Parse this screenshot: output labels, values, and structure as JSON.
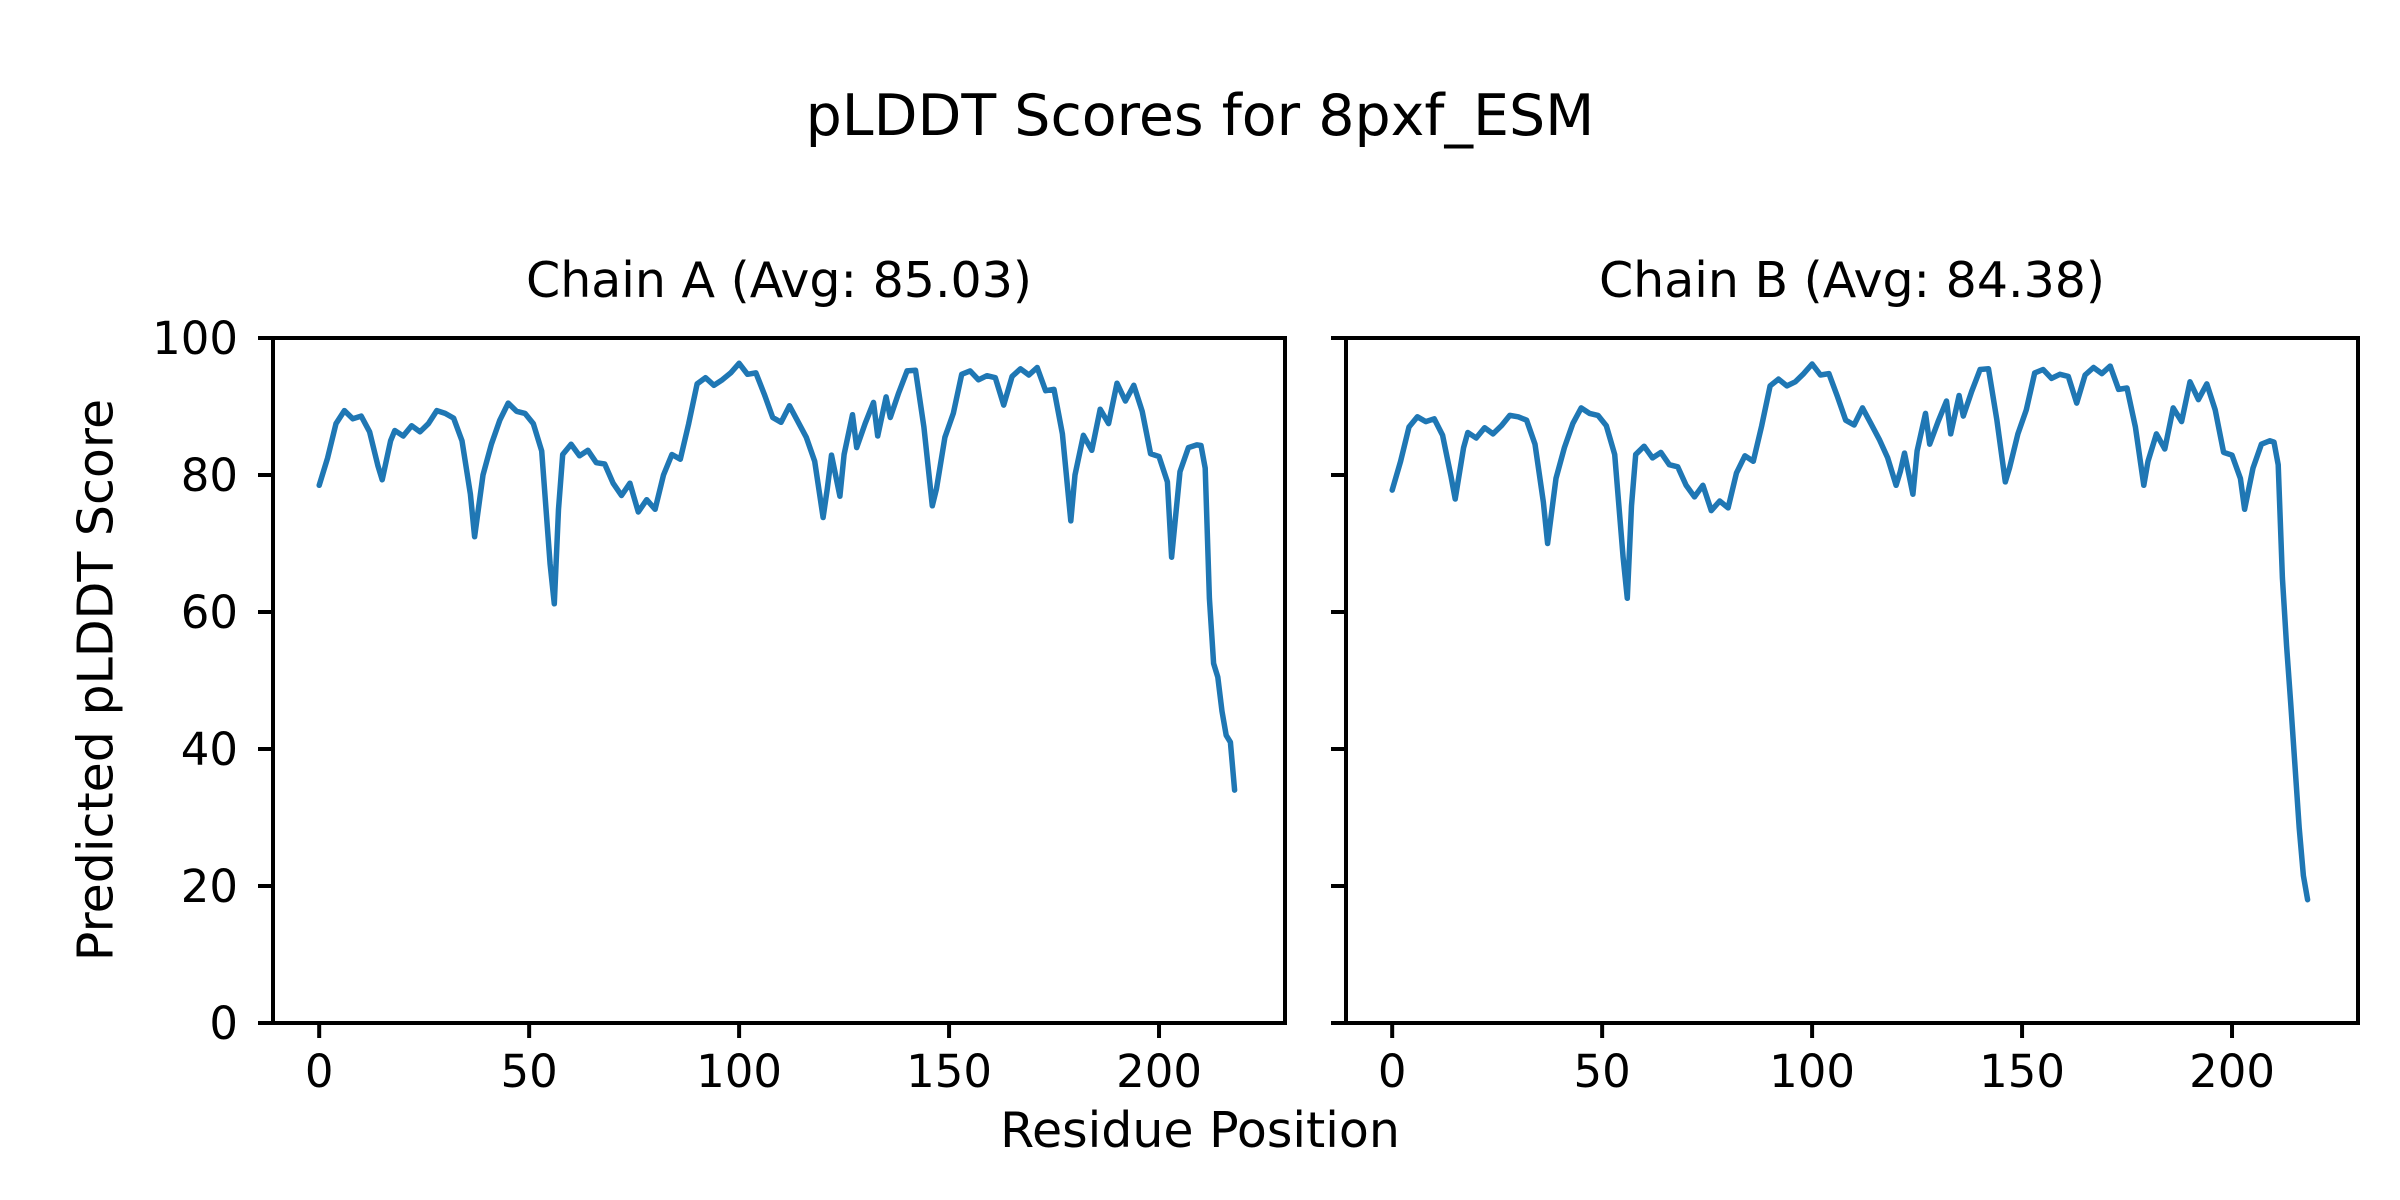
{
  "figure": {
    "suptitle": "pLDDT Scores for 8pxf_ESM"
  },
  "chart_data": {
    "type": "line",
    "title": "pLDDT Scores for 8pxf_ESM",
    "xlabel": "Residue Position",
    "ylabel": "Predicted pLDDT Score",
    "line_color": "#1f77b4",
    "background_color": "#ffffff",
    "grid": false,
    "legend_position": "none",
    "xlim": [
      -11,
      230
    ],
    "ylim": [
      0,
      100
    ],
    "xticks": [
      0,
      50,
      100,
      150,
      200
    ],
    "yticks": [
      0,
      20,
      40,
      60,
      80,
      100
    ],
    "x": [
      0,
      2,
      4,
      6,
      8,
      10,
      12,
      14,
      15,
      17,
      18,
      20,
      22,
      24,
      26,
      28,
      30,
      32,
      34,
      36,
      37,
      39,
      41,
      43,
      45,
      47,
      49,
      51,
      53,
      55,
      56,
      57,
      58,
      60,
      62,
      64,
      66,
      68,
      70,
      72,
      74,
      76,
      78,
      80,
      82,
      84,
      86,
      88,
      90,
      92,
      94,
      96,
      98,
      100,
      102,
      104,
      106,
      108,
      110,
      112,
      114,
      116,
      118,
      120,
      121,
      122,
      124,
      125,
      127,
      128,
      130,
      132,
      133,
      135,
      136,
      138,
      140,
      142,
      144,
      146,
      147,
      149,
      151,
      153,
      155,
      157,
      159,
      161,
      163,
      165,
      167,
      169,
      171,
      173,
      175,
      177,
      179,
      180,
      182,
      184,
      186,
      188,
      190,
      192,
      194,
      196,
      198,
      200,
      202,
      203,
      205,
      207,
      209,
      210,
      211,
      212,
      213,
      214,
      215,
      216,
      217,
      218
    ],
    "subplots": [
      {
        "chain": "A",
        "label": "Chain A (Avg: 85.03)",
        "avg": 85.03,
        "values": [
          78.5,
          82.5,
          87.5,
          89.4,
          88.2,
          88.6,
          86.3,
          81.3,
          79.3,
          85.0,
          86.5,
          85.7,
          87.2,
          86.3,
          87.5,
          89.4,
          89.0,
          88.3,
          85.0,
          77.2,
          71.0,
          80.0,
          84.5,
          88.0,
          90.5,
          89.3,
          89.0,
          87.5,
          83.5,
          67.0,
          61.2,
          75.0,
          83.0,
          84.5,
          82.8,
          83.6,
          81.8,
          81.6,
          78.8,
          77.0,
          78.8,
          74.6,
          76.4,
          75.0,
          80.0,
          83.0,
          82.3,
          87.5,
          93.3,
          94.2,
          93.1,
          93.9,
          94.9,
          96.3,
          94.7,
          94.9,
          91.8,
          88.4,
          87.7,
          90.1,
          87.8,
          85.5,
          82.0,
          73.8,
          78.0,
          82.9,
          76.9,
          83.0,
          88.8,
          84.0,
          87.5,
          90.6,
          85.7,
          91.4,
          88.4,
          92.0,
          95.2,
          95.3,
          87.0,
          75.5,
          78.0,
          85.5,
          89.0,
          94.7,
          95.2,
          93.9,
          94.5,
          94.2,
          90.2,
          94.4,
          95.5,
          94.6,
          95.7,
          92.3,
          92.5,
          86.0,
          73.3,
          80.0,
          85.8,
          83.6,
          89.6,
          87.5,
          93.4,
          90.8,
          93.1,
          89.3,
          83.1,
          82.7,
          79.0,
          68.0,
          80.5,
          84.0,
          84.4,
          84.3,
          81.0,
          62.0,
          52.5,
          50.5,
          45.5,
          42.0,
          41.0,
          34.0
        ]
      },
      {
        "chain": "B",
        "label": "Chain B (Avg: 84.38)",
        "avg": 84.38,
        "values": [
          77.8,
          82.0,
          87.0,
          88.5,
          87.8,
          88.2,
          85.8,
          79.8,
          76.5,
          84.0,
          86.2,
          85.4,
          86.9,
          86.0,
          87.2,
          88.7,
          88.5,
          88.0,
          84.5,
          76.0,
          70.0,
          79.5,
          84.0,
          87.5,
          89.8,
          89.0,
          88.7,
          87.2,
          83.0,
          68.0,
          62.0,
          75.5,
          83.0,
          84.2,
          82.5,
          83.3,
          81.5,
          81.2,
          78.5,
          76.8,
          78.5,
          74.8,
          76.2,
          75.2,
          80.3,
          82.8,
          82.0,
          87.2,
          93.0,
          94.0,
          93.0,
          93.6,
          94.8,
          96.2,
          94.6,
          94.8,
          91.5,
          88.0,
          87.3,
          89.8,
          87.5,
          85.2,
          82.5,
          78.5,
          80.5,
          83.2,
          77.2,
          83.5,
          89.0,
          84.5,
          87.8,
          90.8,
          86.0,
          91.6,
          88.6,
          92.2,
          95.4,
          95.5,
          88.0,
          79.0,
          81.0,
          86.0,
          89.5,
          94.9,
          95.4,
          94.1,
          94.7,
          94.4,
          90.5,
          94.6,
          95.7,
          94.8,
          95.9,
          92.5,
          92.7,
          87.0,
          78.5,
          82.0,
          86.0,
          83.8,
          89.8,
          87.8,
          93.6,
          91.0,
          93.3,
          89.5,
          83.3,
          82.9,
          79.5,
          75.0,
          81.0,
          84.5,
          85.0,
          84.8,
          81.5,
          65.0,
          55.0,
          46.5,
          37.5,
          28.5,
          21.5,
          18.0
        ]
      }
    ]
  }
}
